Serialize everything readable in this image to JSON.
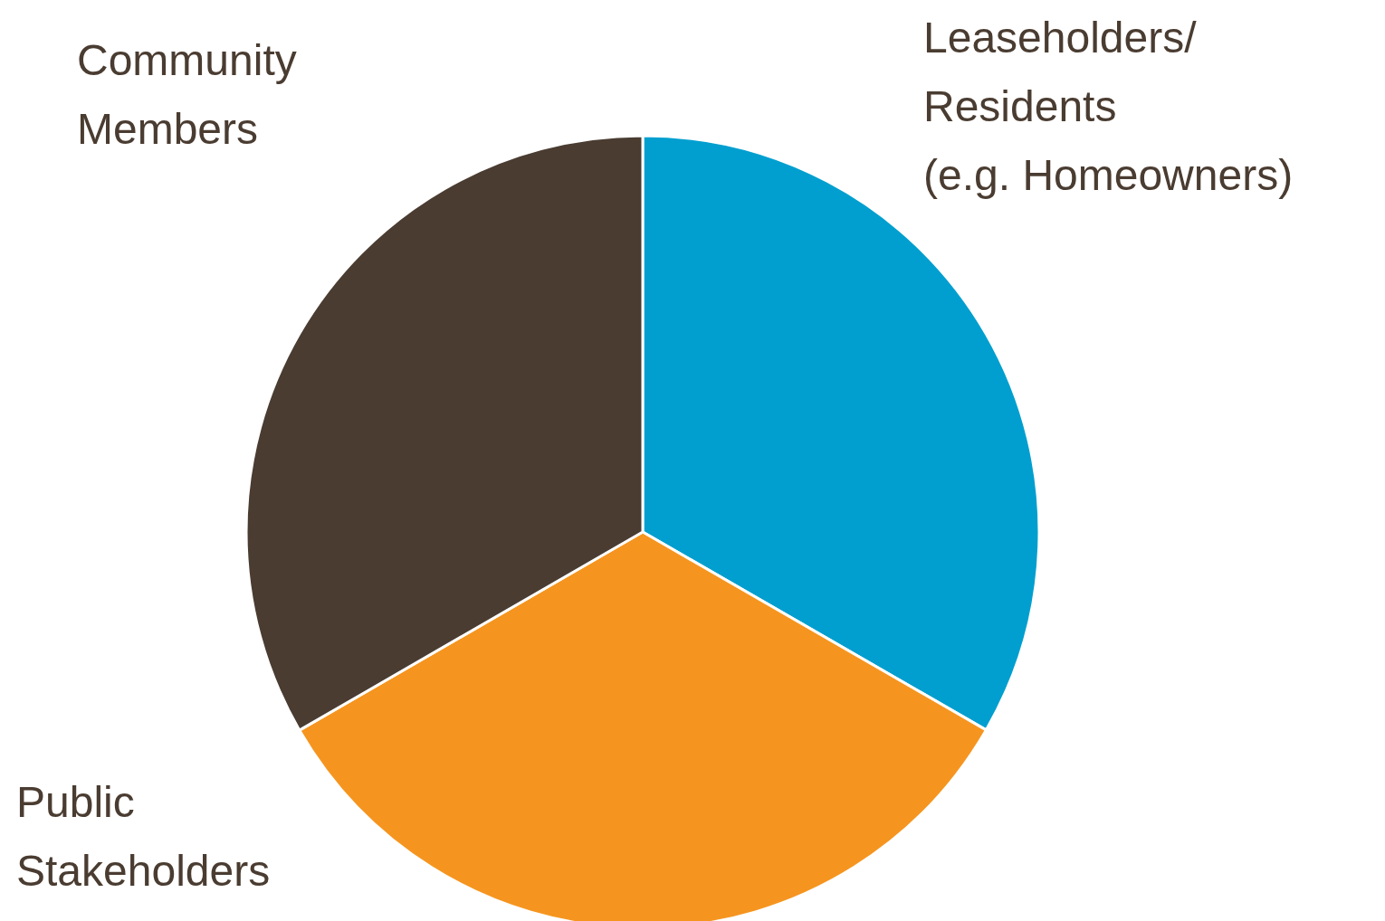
{
  "chart_data": {
    "type": "pie",
    "categories": [
      "Leaseholders/\nResidents\n(e.g. Homeowners)",
      "Public\nStakeholders",
      "Community\nMembers"
    ],
    "values": [
      33.33,
      33.33,
      33.34
    ],
    "colors": [
      "#009fcf",
      "#f5951f",
      "#4a3c31"
    ]
  }
}
